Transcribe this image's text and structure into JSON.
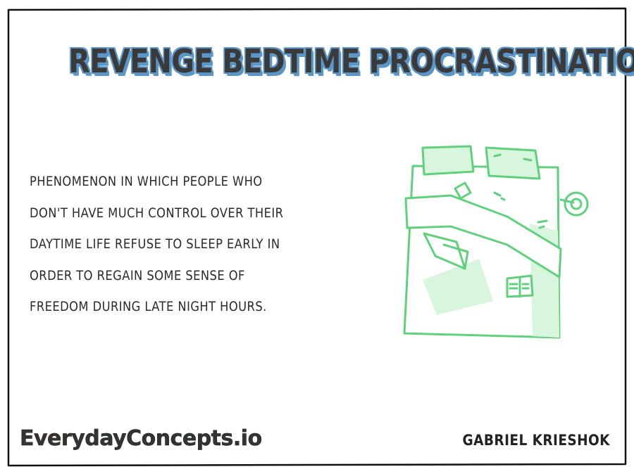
{
  "title": "REVENGE BEDTIME PROCRASTINATION",
  "description": {
    "lines": [
      "Phenomenon in which people who",
      "don't have much control over their",
      "daytime life refuse to sleep early in",
      "order to regain some sense of",
      "freedom during late night hours."
    ]
  },
  "illustration": {
    "icon": "bed-icon",
    "line_color": "#5fd17c",
    "fill_color": "#d8f5de"
  },
  "brand": {
    "text": "EverydayConcepts.io"
  },
  "author": "Gabriel Krieshok",
  "colors": {
    "title_text": "#3a3a3a",
    "title_outline": "#5b96c9",
    "frame": "#111111"
  }
}
